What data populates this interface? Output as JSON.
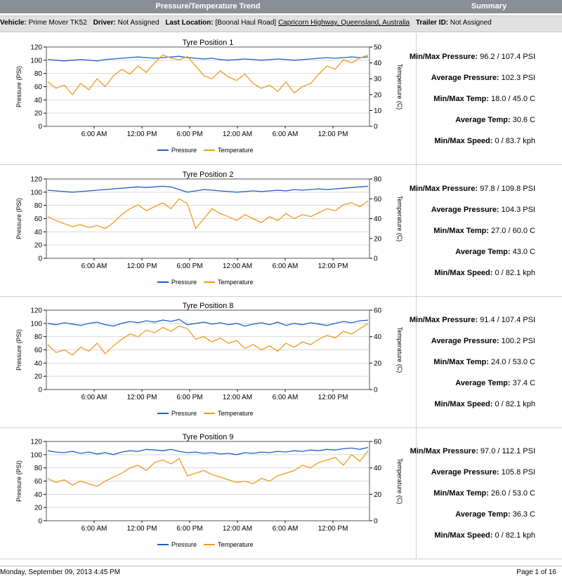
{
  "header": {
    "trend_title": "Pressure/Temperature Trend",
    "summary_title": "Summary"
  },
  "info": {
    "vehicle_label": "Vehicle:",
    "vehicle": "Prime Mover TK52",
    "driver_label": "Driver:",
    "driver": "Not Assigned",
    "location_label": "Last Location:",
    "location_prefix": "[Boonal Haul Road]",
    "location_link": "Capricorn Highway, Queensland, Australia",
    "trailer_label": "Trailer ID:",
    "trailer": "Not Assigned"
  },
  "summary_labels": {
    "minmax_pressure": "Min/Max Pressure:",
    "avg_pressure": "Average Pressure:",
    "minmax_temp": "Min/Max Temp:",
    "avg_temp": "Average Temp:",
    "minmax_speed": "Min/Max Speed:"
  },
  "tyres": [
    {
      "summary": {
        "minmax_pressure": "96.2 / 107.4 PSI",
        "avg_pressure": "102.3 PSI",
        "minmax_temp": "18.0 / 45.0 C",
        "avg_temp": "30.6 C",
        "minmax_speed": "0 / 83.7 kph"
      }
    },
    {
      "summary": {
        "minmax_pressure": "97.8 / 109.8 PSI",
        "avg_pressure": "104.3 PSI",
        "minmax_temp": "27.0 / 60.0 C",
        "avg_temp": "43.0 C",
        "minmax_speed": "0 / 82.1 kph"
      }
    },
    {
      "summary": {
        "minmax_pressure": "91.4 / 107.4 PSI",
        "avg_pressure": "100.2 PSI",
        "minmax_temp": "24.0 / 53.0 C",
        "avg_temp": "37.4 C",
        "minmax_speed": "0 / 82.1 kph"
      }
    },
    {
      "summary": {
        "minmax_pressure": "97.0 / 112.1 PSI",
        "avg_pressure": "105.8 PSI",
        "minmax_temp": "26.0 / 53.0 C",
        "avg_temp": "36.3 C",
        "minmax_speed": "0 / 82.1 kph"
      }
    }
  ],
  "chart_data": [
    {
      "type": "line",
      "title": "Tyre Position  1",
      "ylabel": "Pressure (PSI)",
      "y2label": "Temperature (C)",
      "ylim": [
        0,
        120
      ],
      "y2lim": [
        0,
        50
      ],
      "yticks": [
        0,
        20,
        40,
        60,
        80,
        100,
        120
      ],
      "y2ticks": [
        0,
        10,
        20,
        30,
        40,
        50
      ],
      "xticks": [
        "6:00 AM",
        "12:00 PM",
        "6:00 PM",
        "12:00 AM",
        "6:00 AM",
        "12:00 PM"
      ],
      "grid": true,
      "legend": "bottom",
      "series": [
        {
          "name": "Pressure",
          "axis": "left",
          "color": "#1f5fc8",
          "values": [
            101,
            100,
            99,
            100,
            101,
            100,
            99,
            101,
            102,
            103,
            104,
            105,
            104,
            103,
            104,
            105,
            106,
            104,
            103,
            102,
            103,
            101,
            100,
            101,
            102,
            101,
            100,
            101,
            102,
            101,
            100,
            101,
            102,
            103,
            104,
            103,
            104,
            105,
            104,
            105
          ]
        },
        {
          "name": "Temperature",
          "axis": "right",
          "color": "#f19a1b",
          "values": [
            28,
            24,
            26,
            20,
            27,
            23,
            30,
            25,
            32,
            36,
            33,
            38,
            34,
            40,
            45,
            43,
            42,
            44,
            38,
            32,
            30,
            35,
            31,
            29,
            33,
            27,
            24,
            26,
            22,
            28,
            21,
            25,
            27,
            33,
            38,
            36,
            42,
            40,
            43,
            45
          ]
        }
      ]
    },
    {
      "type": "line",
      "title": "Tyre Position  2",
      "ylabel": "Pressure (PSI)",
      "y2label": "Temperature (C)",
      "ylim": [
        0,
        120
      ],
      "y2lim": [
        0,
        80
      ],
      "yticks": [
        0,
        20,
        40,
        60,
        80,
        100,
        120
      ],
      "y2ticks": [
        0,
        20,
        40,
        60,
        80
      ],
      "xticks": [
        "6:00 AM",
        "12:00 PM",
        "6:00 PM",
        "12:00 AM",
        "6:00 AM",
        "12:00 PM"
      ],
      "grid": true,
      "legend": "bottom",
      "series": [
        {
          "name": "Pressure",
          "axis": "left",
          "color": "#1f5fc8",
          "values": [
            103,
            102,
            101,
            100,
            101,
            102,
            103,
            104,
            105,
            106,
            107,
            108,
            107,
            108,
            109,
            108,
            104,
            100,
            102,
            104,
            103,
            102,
            101,
            100,
            101,
            102,
            101,
            102,
            103,
            102,
            104,
            103,
            104,
            105,
            104,
            105,
            106,
            107,
            108,
            109
          ]
        },
        {
          "name": "Temperature",
          "axis": "right",
          "color": "#f19a1b",
          "values": [
            42,
            38,
            35,
            32,
            34,
            31,
            33,
            30,
            36,
            44,
            50,
            54,
            48,
            52,
            56,
            50,
            60,
            55,
            30,
            40,
            50,
            45,
            42,
            38,
            44,
            40,
            36,
            42,
            38,
            45,
            40,
            44,
            42,
            46,
            50,
            48,
            54,
            56,
            52,
            58
          ]
        }
      ]
    },
    {
      "type": "line",
      "title": "Tyre Position  8",
      "ylabel": "Pressure (PSI)",
      "y2label": "Temperature (C)",
      "ylim": [
        0,
        120
      ],
      "y2lim": [
        0,
        60
      ],
      "yticks": [
        0,
        20,
        40,
        60,
        80,
        100,
        120
      ],
      "y2ticks": [
        0,
        20,
        40,
        60
      ],
      "xticks": [
        "6:00 AM",
        "12:00 PM",
        "6:00 PM",
        "12:00 AM",
        "6:00 AM",
        "12:00 PM"
      ],
      "grid": true,
      "legend": "bottom",
      "series": [
        {
          "name": "Pressure",
          "axis": "left",
          "color": "#1f5fc8",
          "values": [
            100,
            98,
            101,
            99,
            97,
            100,
            102,
            98,
            96,
            100,
            103,
            101,
            104,
            102,
            105,
            103,
            106,
            98,
            100,
            102,
            99,
            101,
            98,
            100,
            96,
            99,
            101,
            98,
            102,
            97,
            100,
            98,
            101,
            99,
            97,
            100,
            103,
            101,
            104,
            105
          ]
        },
        {
          "name": "Temperature",
          "axis": "right",
          "color": "#f19a1b",
          "values": [
            34,
            28,
            30,
            26,
            32,
            29,
            35,
            27,
            33,
            38,
            42,
            40,
            45,
            43,
            47,
            44,
            48,
            46,
            38,
            40,
            36,
            39,
            35,
            37,
            31,
            34,
            30,
            33,
            29,
            35,
            32,
            36,
            34,
            38,
            41,
            39,
            44,
            42,
            46,
            50
          ]
        }
      ]
    },
    {
      "type": "line",
      "title": "Tyre Position  9",
      "ylabel": "Pressure (PSI)",
      "y2label": "Temperature (C)",
      "ylim": [
        0,
        120
      ],
      "y2lim": [
        0,
        60
      ],
      "yticks": [
        0,
        20,
        40,
        60,
        80,
        100,
        120
      ],
      "y2ticks": [
        0,
        20,
        40,
        60
      ],
      "xticks": [
        "6:00 AM",
        "12:00 PM",
        "6:00 PM",
        "12:00 AM",
        "6:00 AM",
        "12:00 PM"
      ],
      "grid": true,
      "legend": "bottom",
      "series": [
        {
          "name": "Pressure",
          "axis": "left",
          "color": "#1f5fc8",
          "values": [
            106,
            104,
            103,
            105,
            102,
            104,
            101,
            103,
            100,
            104,
            106,
            105,
            108,
            107,
            106,
            108,
            105,
            103,
            104,
            102,
            103,
            101,
            102,
            100,
            103,
            102,
            104,
            103,
            105,
            104,
            106,
            105,
            107,
            106,
            108,
            107,
            109,
            110,
            108,
            111
          ]
        },
        {
          "name": "Temperature",
          "axis": "right",
          "color": "#f19a1b",
          "values": [
            32,
            29,
            31,
            27,
            30,
            28,
            26,
            30,
            33,
            36,
            40,
            42,
            38,
            44,
            46,
            43,
            47,
            34,
            36,
            38,
            35,
            33,
            31,
            29,
            30,
            28,
            32,
            30,
            34,
            36,
            38,
            42,
            40,
            44,
            46,
            48,
            42,
            50,
            45,
            53
          ]
        }
      ]
    }
  ],
  "footer": {
    "datetime": "Monday, September 09, 2013 4:45 PM",
    "page": "Page 1 of 16"
  }
}
